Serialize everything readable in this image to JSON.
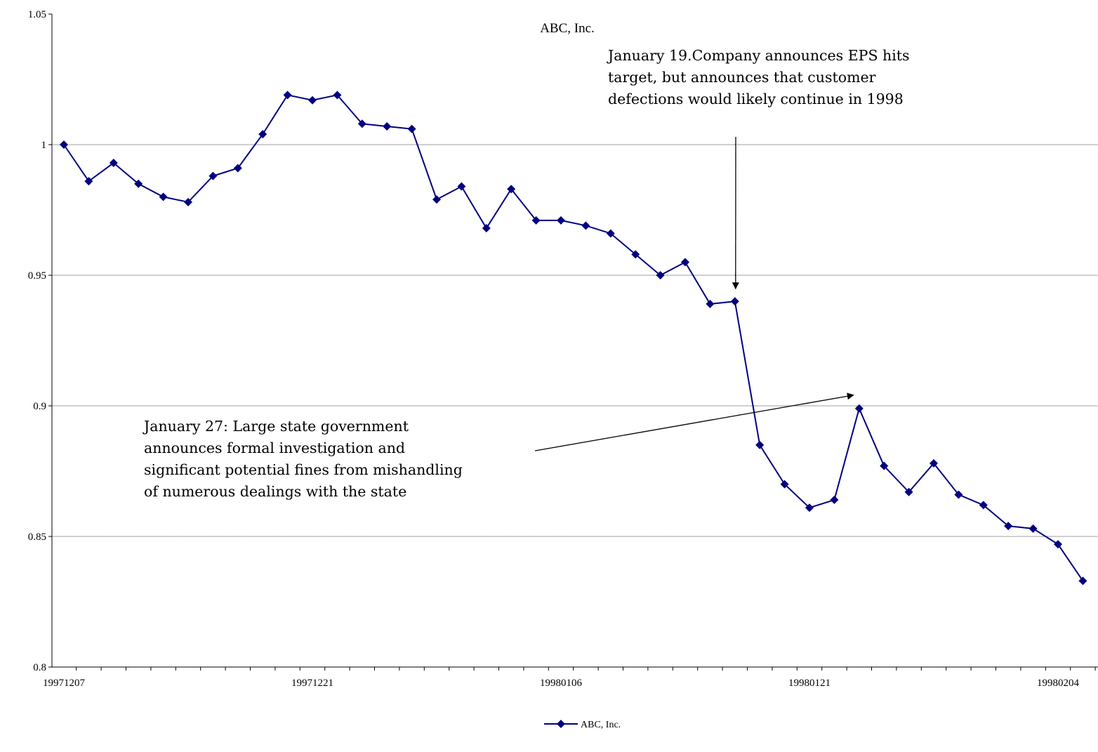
{
  "chart_data": {
    "type": "line",
    "title": "ABC, Inc.",
    "xlabel": "",
    "ylabel": "",
    "ylim": [
      0.8,
      1.05
    ],
    "yticks": [
      "0.8",
      "0.85",
      "0.9",
      "0.95",
      "1",
      "1.05"
    ],
    "x_tick_labels": [
      "19971207",
      "19971221",
      "19980106",
      "19980121",
      "19980204"
    ],
    "grid": "horizontal",
    "legend_position": "bottom",
    "series": [
      {
        "name": "ABC, Inc.",
        "color": "#000080",
        "marker": "diamond",
        "values": [
          1.0,
          0.986,
          0.993,
          0.985,
          0.98,
          0.978,
          0.988,
          0.991,
          1.004,
          1.019,
          1.017,
          1.019,
          1.008,
          1.007,
          1.006,
          0.979,
          0.984,
          0.968,
          0.983,
          0.971,
          0.971,
          0.969,
          0.966,
          0.958,
          0.95,
          0.955,
          0.939,
          0.94,
          0.885,
          0.87,
          0.861,
          0.864,
          0.899,
          0.877,
          0.867,
          0.878,
          0.866,
          0.862,
          0.854,
          0.853,
          0.847,
          0.833
        ]
      }
    ],
    "annotations": [
      {
        "lines": [
          "January 19.Company announces  EPS hits",
          "target, but announces that customer",
          "defections would likely continue in 1998"
        ],
        "points_to_index": 27
      },
      {
        "lines": [
          "January 27: Large state government",
          "announces formal investigation and",
          "significant potential fines from mishandling",
          "of numerous dealings with the state"
        ],
        "points_to_index": 32
      }
    ]
  }
}
